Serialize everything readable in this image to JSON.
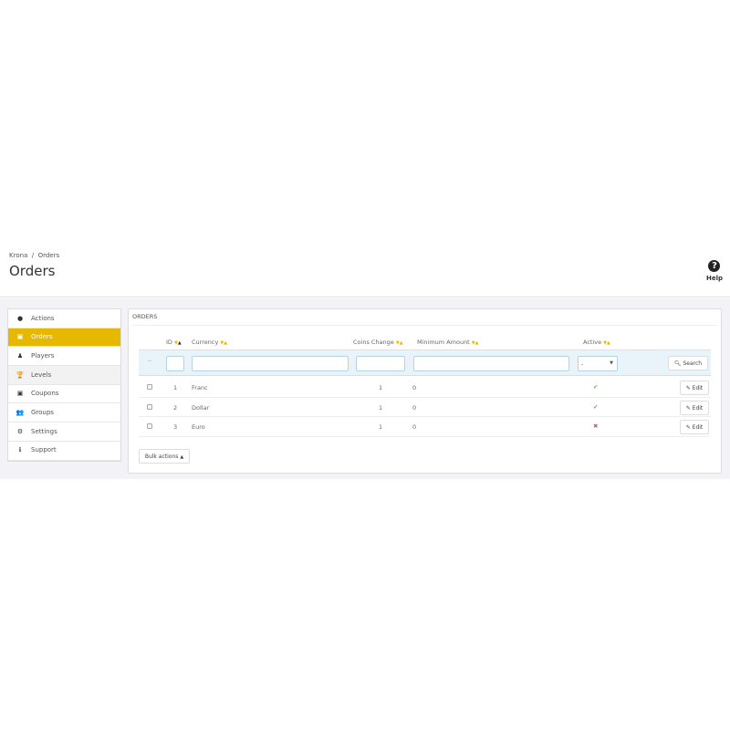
{
  "breadcrumb": [
    "Krona",
    "Orders"
  ],
  "breadcrumb_sep": "/",
  "page_title": "Orders",
  "help_label": "Help",
  "sidebar": {
    "items": [
      {
        "label": "Actions",
        "icon": "circle-dot-icon",
        "glyph": "●"
      },
      {
        "label": "Orders",
        "icon": "money-icon",
        "glyph": "▣",
        "active": true
      },
      {
        "label": "Players",
        "icon": "user-icon",
        "glyph": "♟"
      },
      {
        "label": "Levels",
        "icon": "trophy-icon",
        "glyph": "🏆"
      },
      {
        "label": "Coupons",
        "icon": "money-icon",
        "glyph": "▣"
      },
      {
        "label": "Groups",
        "icon": "users-icon",
        "glyph": "👥"
      },
      {
        "label": "Settings",
        "icon": "cogs-icon",
        "glyph": "⚙"
      },
      {
        "label": "Support",
        "icon": "info-circle-icon",
        "glyph": "ℹ"
      }
    ]
  },
  "panel": {
    "title": "ORDERS",
    "columns": [
      "ID",
      "Currency",
      "Coins Change",
      "Minimum Amount",
      "Active"
    ],
    "filter": {
      "bulk_placeholder": "--",
      "active_selected": "-",
      "search_label": "Search"
    },
    "rows": [
      {
        "id": "1",
        "currency": "Franc",
        "coins_change": "1",
        "minimum_amount": "0",
        "active": true
      },
      {
        "id": "2",
        "currency": "Dollar",
        "coins_change": "1",
        "minimum_amount": "0",
        "active": true
      },
      {
        "id": "3",
        "currency": "Euro",
        "coins_change": "1",
        "minimum_amount": "0",
        "active": false
      }
    ],
    "edit_label": "Edit",
    "bulk_actions_label": "Bulk actions"
  },
  "colors": {
    "accent": "#e6b800",
    "check": "#5cb85c",
    "cross": "#e05555"
  }
}
